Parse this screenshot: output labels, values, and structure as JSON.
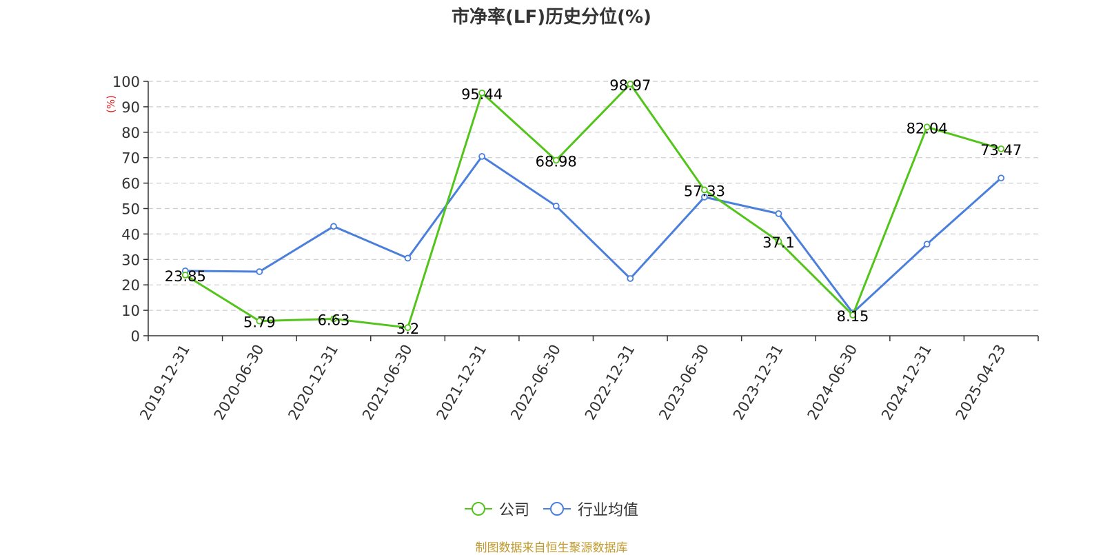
{
  "chart_data": {
    "type": "line",
    "title": "市净率(LF)历史分位(%)",
    "ylabel": "(%)",
    "ylim": [
      0,
      100
    ],
    "yticks": [
      "0",
      "10",
      "20",
      "30",
      "40",
      "50",
      "60",
      "70",
      "80",
      "90",
      "100"
    ],
    "categories": [
      "2019-12-31",
      "2020-06-30",
      "2020-12-31",
      "2021-06-30",
      "2021-12-31",
      "2022-06-30",
      "2022-12-31",
      "2023-06-30",
      "2023-12-31",
      "2024-06-30",
      "2024-12-31",
      "2025-04-23"
    ],
    "series": [
      {
        "name": "公司",
        "color": "#52c41a",
        "values": [
          23.85,
          5.79,
          6.63,
          3.2,
          95.44,
          68.98,
          98.97,
          57.33,
          37.1,
          8.15,
          82.04,
          73.47
        ],
        "labels": [
          "23.85",
          "5.79",
          "6.63",
          "3.2",
          "95.44",
          "68.98",
          "98.97",
          "57.33",
          "37.1",
          "8.15",
          "82.04",
          "73.47"
        ]
      },
      {
        "name": "行业均值",
        "color": "#4a7fdc",
        "values": [
          25.5,
          25.2,
          43.0,
          30.5,
          70.5,
          51.0,
          22.5,
          54.5,
          48.0,
          9.0,
          36.0,
          62.0
        ]
      }
    ],
    "grid": true,
    "legend": "bottom-center"
  },
  "footer": {
    "source": "制图数据来自恒生聚源数据库"
  }
}
